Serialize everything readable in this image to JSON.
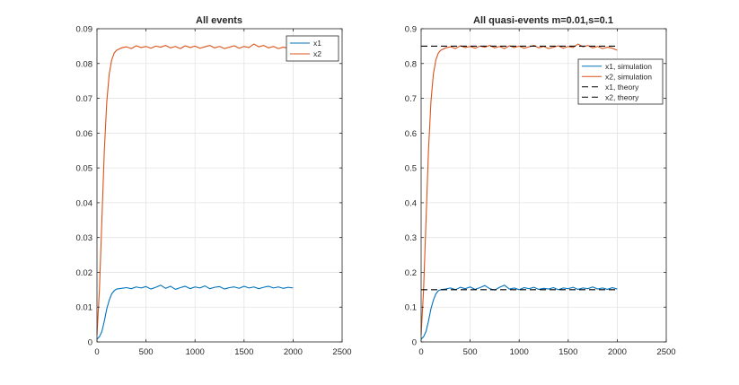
{
  "figure": {
    "background": "#ffffff",
    "series_colors": [
      "#0072bd",
      "#d95319"
    ],
    "theory_color": "#000000"
  },
  "chart_data": [
    {
      "type": "line",
      "title": "All events",
      "xlabel": "",
      "ylabel": "",
      "xlim": [
        0,
        2500
      ],
      "ylim": [
        0,
        0.09
      ],
      "xticks": [
        "0",
        "500",
        "1000",
        "1500",
        "2000",
        "2500"
      ],
      "yticks": [
        "0",
        "0.01",
        "0.02",
        "0.03",
        "0.04",
        "0.05",
        "0.06",
        "0.07",
        "0.08",
        "0.09"
      ],
      "grid": true,
      "legend_position": "top-right",
      "series": [
        {
          "name": "x1",
          "color": "#0072bd",
          "style": "solid",
          "x": [
            0,
            25,
            50,
            75,
            100,
            125,
            150,
            175,
            200,
            250,
            300,
            350,
            400,
            450,
            500,
            550,
            600,
            650,
            700,
            750,
            800,
            850,
            900,
            950,
            1000,
            1050,
            1100,
            1150,
            1200,
            1250,
            1300,
            1350,
            1400,
            1450,
            1500,
            1550,
            1600,
            1650,
            1700,
            1750,
            1800,
            1850,
            1900,
            1950,
            2000
          ],
          "y": [
            0.0008,
            0.0015,
            0.003,
            0.006,
            0.0095,
            0.012,
            0.0138,
            0.0147,
            0.0152,
            0.0154,
            0.0156,
            0.0153,
            0.0158,
            0.0155,
            0.0159,
            0.0152,
            0.0157,
            0.0163,
            0.0154,
            0.016,
            0.0151,
            0.0156,
            0.016,
            0.0153,
            0.0158,
            0.0155,
            0.0161,
            0.0153,
            0.0157,
            0.0159,
            0.0152,
            0.0156,
            0.0158,
            0.0154,
            0.016,
            0.0155,
            0.0158,
            0.0153,
            0.0157,
            0.016,
            0.0155,
            0.0158,
            0.0154,
            0.0157,
            0.0155
          ]
        },
        {
          "name": "x2",
          "color": "#d95319",
          "style": "solid",
          "x": [
            0,
            25,
            50,
            75,
            100,
            125,
            150,
            175,
            200,
            250,
            300,
            350,
            400,
            450,
            500,
            550,
            600,
            650,
            700,
            750,
            800,
            850,
            900,
            950,
            1000,
            1050,
            1100,
            1150,
            1200,
            1250,
            1300,
            1350,
            1400,
            1450,
            1500,
            1550,
            1600,
            1650,
            1700,
            1750,
            1800,
            1850,
            1900,
            1950,
            2000
          ],
          "y": [
            0.002,
            0.015,
            0.035,
            0.055,
            0.069,
            0.077,
            0.081,
            0.083,
            0.0838,
            0.0845,
            0.0848,
            0.0843,
            0.0851,
            0.0846,
            0.0849,
            0.0844,
            0.085,
            0.0847,
            0.0852,
            0.0845,
            0.0849,
            0.0843,
            0.0851,
            0.0846,
            0.085,
            0.0844,
            0.0848,
            0.0852,
            0.0845,
            0.0849,
            0.0843,
            0.0847,
            0.0851,
            0.0844,
            0.0849,
            0.0846,
            0.0856,
            0.0848,
            0.0852,
            0.0845,
            0.0849,
            0.0843,
            0.0847,
            0.0844,
            0.0838
          ]
        }
      ]
    },
    {
      "type": "line",
      "title": "All quasi-events m=0.01,s=0.1",
      "xlabel": "",
      "ylabel": "",
      "xlim": [
        0,
        2500
      ],
      "ylim": [
        0,
        0.9
      ],
      "xticks": [
        "0",
        "500",
        "1000",
        "1500",
        "2000",
        "2500"
      ],
      "yticks": [
        "0",
        "0.1",
        "0.2",
        "0.3",
        "0.4",
        "0.5",
        "0.6",
        "0.7",
        "0.8",
        "0.9"
      ],
      "grid": true,
      "legend_position": "top-right",
      "series": [
        {
          "name": "x1, simulation",
          "color": "#0072bd",
          "style": "solid",
          "x": [
            0,
            25,
            50,
            75,
            100,
            125,
            150,
            175,
            200,
            250,
            300,
            350,
            400,
            450,
            500,
            550,
            600,
            650,
            700,
            750,
            800,
            850,
            900,
            950,
            1000,
            1050,
            1100,
            1150,
            1200,
            1250,
            1300,
            1350,
            1400,
            1450,
            1500,
            1550,
            1600,
            1650,
            1700,
            1750,
            1800,
            1850,
            1900,
            1950,
            2000
          ],
          "y": [
            0.008,
            0.015,
            0.03,
            0.06,
            0.095,
            0.12,
            0.138,
            0.147,
            0.15,
            0.152,
            0.155,
            0.15,
            0.157,
            0.153,
            0.158,
            0.151,
            0.156,
            0.162,
            0.153,
            0.149,
            0.157,
            0.163,
            0.152,
            0.155,
            0.15,
            0.156,
            0.153,
            0.157,
            0.151,
            0.154,
            0.152,
            0.156,
            0.15,
            0.155,
            0.153,
            0.157,
            0.151,
            0.155,
            0.153,
            0.158,
            0.152,
            0.155,
            0.151,
            0.156,
            0.152
          ]
        },
        {
          "name": "x2, simulation",
          "color": "#d95319",
          "style": "solid",
          "x": [
            0,
            25,
            50,
            75,
            100,
            125,
            150,
            175,
            200,
            250,
            300,
            350,
            400,
            450,
            500,
            550,
            600,
            650,
            700,
            750,
            800,
            850,
            900,
            950,
            1000,
            1050,
            1100,
            1150,
            1200,
            1250,
            1300,
            1350,
            1400,
            1450,
            1500,
            1550,
            1600,
            1650,
            1700,
            1750,
            1800,
            1850,
            1900,
            1950,
            2000
          ],
          "y": [
            0.02,
            0.15,
            0.35,
            0.55,
            0.69,
            0.77,
            0.81,
            0.83,
            0.838,
            0.845,
            0.848,
            0.843,
            0.851,
            0.846,
            0.849,
            0.844,
            0.85,
            0.847,
            0.852,
            0.845,
            0.849,
            0.843,
            0.851,
            0.846,
            0.85,
            0.844,
            0.848,
            0.852,
            0.845,
            0.849,
            0.843,
            0.847,
            0.851,
            0.844,
            0.849,
            0.846,
            0.856,
            0.848,
            0.852,
            0.845,
            0.849,
            0.843,
            0.847,
            0.844,
            0.838
          ]
        },
        {
          "name": "x1, theory",
          "color": "#000000",
          "style": "dashed",
          "x": [
            0,
            2000
          ],
          "y": [
            0.15,
            0.15
          ]
        },
        {
          "name": "x2, theory",
          "color": "#000000",
          "style": "dashed",
          "x": [
            0,
            2000
          ],
          "y": [
            0.85,
            0.85
          ]
        }
      ]
    }
  ]
}
